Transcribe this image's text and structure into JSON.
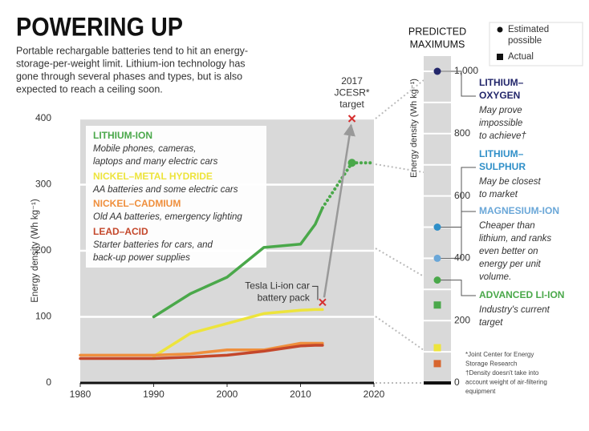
{
  "chart_data": [
    {
      "type": "line",
      "title": "POWERING UP",
      "subtitle": [
        "Portable rechargable batteries tend to hit an energy-",
        "storage-per-weight limit. Lithium-ion technology has",
        "gone through several phases and types, but is also",
        "expected to reach a ceiling soon."
      ],
      "ylabel": "Energy density (Wh kg⁻¹)",
      "x": [
        1980,
        1985,
        1990,
        1995,
        2000,
        2005,
        2010,
        2012,
        2013,
        2017,
        2020
      ],
      "xlim": [
        1980,
        2020
      ],
      "xticks": [
        1980,
        1990,
        2000,
        2010,
        2020
      ],
      "ylim": [
        0,
        400
      ],
      "yticks": [
        0,
        100,
        200,
        300,
        400
      ],
      "grid": true,
      "series": [
        {
          "name": "LITHIUM-ION",
          "color": "#4aa84a",
          "description": [
            "Mobile phones, cameras,",
            "laptops and many electric cars"
          ],
          "values": [
            null,
            null,
            100,
            135,
            160,
            205,
            210,
            240,
            265,
            null,
            null
          ]
        },
        {
          "name": "NICKEL–METAL HYDRIDE",
          "color": "#ede43c",
          "description": [
            "AA batteries and some electric cars"
          ],
          "values": [
            null,
            null,
            40,
            75,
            90,
            105,
            110,
            111,
            111,
            null,
            null
          ]
        },
        {
          "name": "NICKEL–CADMIUM",
          "color": "#ef8f3d",
          "description": [
            "Old AA batteries, emergency lighting"
          ],
          "values": [
            42,
            42,
            42,
            44,
            50,
            50,
            60,
            60,
            60,
            null,
            null
          ]
        },
        {
          "name": "LEAD–ACID",
          "color": "#c4472b",
          "description": [
            "Starter batteries for cars, and",
            "back-up power supplies"
          ],
          "values": [
            37,
            37,
            37,
            39,
            42,
            48,
            56,
            57,
            57,
            null,
            null
          ]
        },
        {
          "color": "#4aa84a",
          "dashed": true,
          "values": [
            null,
            null,
            null,
            null,
            null,
            null,
            null,
            null,
            265,
            333,
            333
          ]
        }
      ],
      "annotations": [
        {
          "text": [
            "2017",
            "JCESR*",
            "target"
          ],
          "x": 2017,
          "y": 400,
          "color": "#d62e2e"
        },
        {
          "text": [
            "Tesla Li-ion car",
            "battery pack"
          ],
          "x": 2013,
          "y": 122,
          "color": "#d62e2e"
        }
      ]
    },
    {
      "type": "dot",
      "title": [
        "PREDICTED",
        "MAXIMUMS"
      ],
      "ylabel": "Energy density (Wh kg⁻¹)",
      "ylim": [
        0,
        1000
      ],
      "yticks": [
        0,
        200,
        400,
        600,
        800,
        {
          "value": 1000,
          "label": "1,000"
        }
      ],
      "grid_ticks": [
        100,
        300,
        500,
        700,
        900
      ],
      "legend": {
        "estimated": [
          "Estimated",
          "possible"
        ],
        "actual": "Actual"
      },
      "estimated": [
        {
          "name": [
            "LITHIUM–",
            "OXYGEN"
          ],
          "color": "#23276b",
          "value": 1000,
          "description": [
            "May prove",
            "impossible",
            "to achieve†"
          ]
        },
        {
          "name": [
            "LITHIUM–",
            "SULPHUR"
          ],
          "color": "#2f8fc8",
          "value": 500,
          "description": [
            "May be closest",
            "to market"
          ]
        },
        {
          "name": [
            "MAGNESIUM-ION"
          ],
          "color": "#6aa7d8",
          "value": 400,
          "description": [
            "Cheaper than",
            "lithium, and ranks",
            "even better on",
            "energy per unit",
            "volume."
          ]
        },
        {
          "name": [
            "ADVANCED LI-ION"
          ],
          "color": "#4aa84a",
          "value": 330,
          "description": [
            "Industry's current",
            "target"
          ]
        }
      ],
      "actual": {
        "values": [
          250,
          113,
          62
        ],
        "colors": [
          "#4aa84a",
          "#ede43c",
          "#d8662f"
        ]
      },
      "notes": [
        "*Joint Center for Energy",
        "Storage Research",
        "†Density doesn't take into",
        "account weight of air-filtering",
        "equipment"
      ]
    }
  ]
}
